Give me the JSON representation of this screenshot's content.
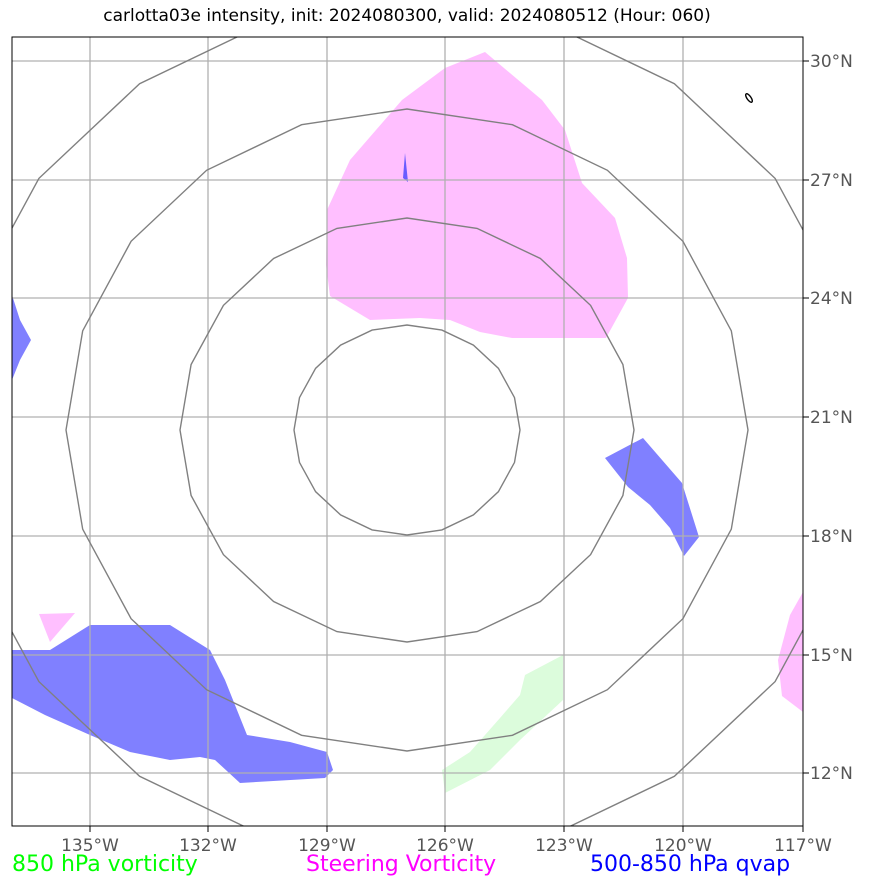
{
  "title": "carlotta03e intensity, init: 2024080300, valid: 2024080512 (Hour: 060)",
  "map": {
    "lat_ticks": [
      "30°N",
      "27°N",
      "24°N",
      "21°N",
      "18°N",
      "15°N",
      "12°N"
    ],
    "lon_ticks": [
      "135°W",
      "132°W",
      "129°W",
      "126°W",
      "123°W",
      "120°W",
      "117°W"
    ]
  },
  "legend": {
    "vort850": "850 hPa vorticity",
    "steering": "Steering Vorticity",
    "qvap": "500-850 hPa qvap"
  },
  "colors": {
    "vort850": "#00ff00",
    "steering": "#ff00ff",
    "qvap": "#0000ff",
    "fill_vort850": "#dcfcdc",
    "fill_steering": "#ffbfff",
    "fill_qvap": "#8080ff",
    "grid": "#b0b0b0",
    "range_rings": "#808080"
  }
}
